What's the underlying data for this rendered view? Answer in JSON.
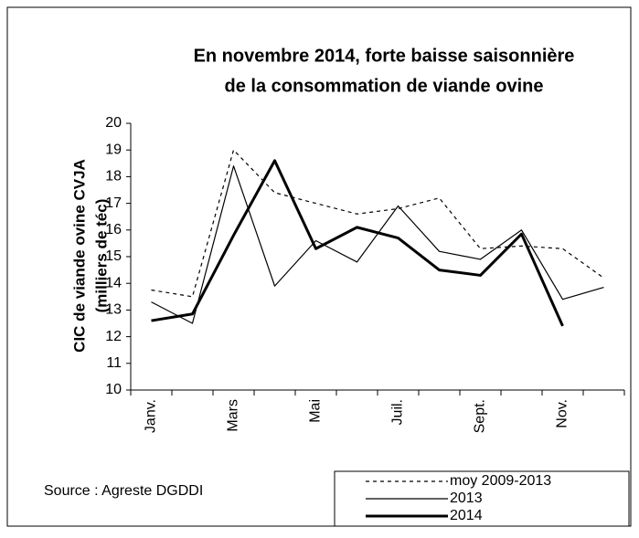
{
  "chart_data": {
    "type": "line",
    "title": [
      "En novembre 2014, forte baisse saisonnière",
      "de la consommation de viande ovine"
    ],
    "y_label": [
      "CIC de viande ovine CVJA",
      "(milliers de téc)"
    ],
    "source": "Source : Agreste DGDDI",
    "categories": [
      "Janv.",
      null,
      "Mars",
      null,
      "Mai",
      null,
      "Juil.",
      null,
      "Sept.",
      null,
      "Nov.",
      null
    ],
    "series": [
      {
        "name": "moy 2009-2013",
        "color": "#000000",
        "line_style": "dashed",
        "line_width": 1.2,
        "values": [
          13.75,
          13.5,
          19.0,
          17.4,
          17.0,
          16.6,
          16.8,
          17.2,
          15.3,
          15.4,
          15.3,
          14.2
        ]
      },
      {
        "name": "2013",
        "color": "#000000",
        "line_style": "solid",
        "line_width": 1.2,
        "values": [
          13.3,
          12.5,
          18.4,
          13.9,
          15.6,
          14.8,
          16.9,
          15.2,
          14.9,
          16.0,
          13.4,
          13.85
        ]
      },
      {
        "name": "2014",
        "color": "#000000",
        "line_style": "solid",
        "line_width": 3,
        "values": [
          12.6,
          12.85,
          15.8,
          18.6,
          15.3,
          16.1,
          15.7,
          14.5,
          14.3,
          15.85,
          12.4,
          null
        ]
      }
    ],
    "ylim": [
      10,
      20
    ],
    "yticks": [
      10,
      11,
      12,
      13,
      14,
      15,
      16,
      17,
      18,
      19,
      20
    ],
    "grid": false
  }
}
